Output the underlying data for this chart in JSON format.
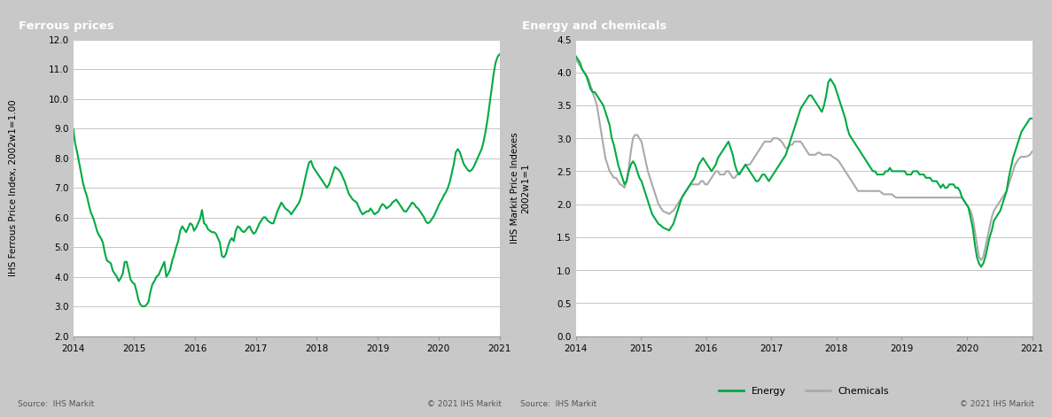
{
  "ferrous_title": "Ferrous prices",
  "energy_title": "Energy and chemicals",
  "ferrous_ylabel": "IHS Ferrous Price Index, 2002w1=1.00",
  "energy_ylabel": "IHS Markit Price Indexes\n2002w1=1",
  "ferrous_ylim": [
    2.0,
    12.0
  ],
  "ferrous_yticks": [
    2.0,
    3.0,
    4.0,
    5.0,
    6.0,
    7.0,
    8.0,
    9.0,
    10.0,
    11.0,
    12.0
  ],
  "energy_ylim": [
    0.0,
    4.5
  ],
  "energy_yticks": [
    0.0,
    0.5,
    1.0,
    1.5,
    2.0,
    2.5,
    3.0,
    3.5,
    4.0,
    4.5
  ],
  "xlim_start": 2014.0,
  "xlim_end": 2021.0,
  "xticks": [
    2014,
    2015,
    2016,
    2017,
    2018,
    2019,
    2020,
    2021
  ],
  "ferrous_color": "#00aa44",
  "energy_color": "#00aa44",
  "chemicals_color": "#aaaaaa",
  "title_bg_color": "#888888",
  "title_text_color": "#ffffff",
  "outer_bg_color": "#c8c8c8",
  "panel_bg_color": "#f0f0f0",
  "source_text": "Source:  IHS Markit",
  "copyright_text": "© 2021 IHS Markit",
  "plot_bg_color": "#ffffff",
  "grid_color": "#bbbbbb",
  "line_width": 1.5,
  "legend_energy": "Energy",
  "legend_chemicals": "Chemicals",
  "ferrous_data": [
    9.0,
    8.5,
    8.2,
    7.85,
    7.5,
    7.15,
    6.9,
    6.7,
    6.4,
    6.15,
    6.0,
    5.8,
    5.55,
    5.4,
    5.3,
    5.15,
    4.8,
    4.55,
    4.5,
    4.45,
    4.2,
    4.1,
    4.0,
    3.85,
    3.95,
    4.1,
    4.5,
    4.5,
    4.2,
    3.9,
    3.8,
    3.75,
    3.5,
    3.2,
    3.05,
    3.0,
    3.0,
    3.05,
    3.15,
    3.5,
    3.75,
    3.85,
    4.0,
    4.05,
    4.2,
    4.35,
    4.5,
    4.0,
    4.1,
    4.25,
    4.55,
    4.75,
    5.0,
    5.2,
    5.55,
    5.7,
    5.6,
    5.5,
    5.65,
    5.8,
    5.75,
    5.55,
    5.65,
    5.8,
    5.95,
    6.25,
    5.8,
    5.75,
    5.6,
    5.55,
    5.5,
    5.5,
    5.45,
    5.3,
    5.15,
    4.7,
    4.65,
    4.75,
    5.0,
    5.2,
    5.3,
    5.2,
    5.55,
    5.7,
    5.65,
    5.55,
    5.5,
    5.55,
    5.65,
    5.7,
    5.55,
    5.45,
    5.5,
    5.65,
    5.8,
    5.9,
    6.0,
    6.0,
    5.9,
    5.85,
    5.8,
    5.8,
    6.0,
    6.2,
    6.35,
    6.5,
    6.4,
    6.3,
    6.25,
    6.2,
    6.1,
    6.2,
    6.3,
    6.4,
    6.5,
    6.7,
    7.0,
    7.3,
    7.6,
    7.85,
    7.9,
    7.7,
    7.6,
    7.5,
    7.4,
    7.3,
    7.2,
    7.1,
    7.0,
    7.1,
    7.3,
    7.5,
    7.7,
    7.65,
    7.6,
    7.5,
    7.35,
    7.2,
    7.0,
    6.8,
    6.7,
    6.6,
    6.55,
    6.5,
    6.35,
    6.2,
    6.1,
    6.15,
    6.2,
    6.2,
    6.3,
    6.2,
    6.1,
    6.15,
    6.2,
    6.35,
    6.45,
    6.4,
    6.3,
    6.35,
    6.4,
    6.5,
    6.55,
    6.6,
    6.5,
    6.4,
    6.3,
    6.2,
    6.2,
    6.3,
    6.4,
    6.5,
    6.45,
    6.35,
    6.3,
    6.2,
    6.1,
    6.0,
    5.85,
    5.8,
    5.85,
    5.95,
    6.05,
    6.2,
    6.35,
    6.5,
    6.6,
    6.75,
    6.85,
    7.0,
    7.2,
    7.5,
    7.8,
    8.2,
    8.3,
    8.2,
    8.0,
    7.8,
    7.7,
    7.6,
    7.55,
    7.6,
    7.7,
    7.85,
    8.0,
    8.15,
    8.3,
    8.55,
    8.9,
    9.3,
    9.8,
    10.3,
    10.8,
    11.2,
    11.4,
    11.5
  ],
  "energy_data": [
    4.25,
    4.2,
    4.15,
    4.05,
    4.0,
    3.95,
    3.85,
    3.75,
    3.7,
    3.7,
    3.65,
    3.6,
    3.55,
    3.5,
    3.4,
    3.3,
    3.2,
    3.0,
    2.9,
    2.75,
    2.6,
    2.5,
    2.4,
    2.3,
    2.35,
    2.5,
    2.6,
    2.65,
    2.6,
    2.5,
    2.4,
    2.35,
    2.25,
    2.15,
    2.05,
    1.95,
    1.85,
    1.8,
    1.75,
    1.7,
    1.68,
    1.65,
    1.63,
    1.62,
    1.6,
    1.65,
    1.7,
    1.8,
    1.9,
    2.0,
    2.1,
    2.15,
    2.2,
    2.25,
    2.3,
    2.35,
    2.4,
    2.5,
    2.6,
    2.65,
    2.7,
    2.65,
    2.6,
    2.55,
    2.5,
    2.55,
    2.6,
    2.7,
    2.75,
    2.8,
    2.85,
    2.9,
    2.95,
    2.85,
    2.75,
    2.6,
    2.5,
    2.45,
    2.5,
    2.55,
    2.6,
    2.55,
    2.5,
    2.45,
    2.4,
    2.35,
    2.35,
    2.4,
    2.45,
    2.45,
    2.4,
    2.35,
    2.4,
    2.45,
    2.5,
    2.55,
    2.6,
    2.65,
    2.7,
    2.75,
    2.85,
    2.95,
    3.05,
    3.15,
    3.25,
    3.35,
    3.45,
    3.5,
    3.55,
    3.6,
    3.65,
    3.65,
    3.6,
    3.55,
    3.5,
    3.45,
    3.4,
    3.5,
    3.65,
    3.85,
    3.9,
    3.85,
    3.8,
    3.7,
    3.6,
    3.5,
    3.4,
    3.3,
    3.15,
    3.05,
    3.0,
    2.95,
    2.9,
    2.85,
    2.8,
    2.75,
    2.7,
    2.65,
    2.6,
    2.55,
    2.5,
    2.5,
    2.45,
    2.45,
    2.45,
    2.45,
    2.5,
    2.5,
    2.55,
    2.5,
    2.5,
    2.5,
    2.5,
    2.5,
    2.5,
    2.5,
    2.45,
    2.45,
    2.45,
    2.5,
    2.5,
    2.5,
    2.45,
    2.45,
    2.45,
    2.4,
    2.4,
    2.4,
    2.35,
    2.35,
    2.35,
    2.3,
    2.25,
    2.3,
    2.25,
    2.25,
    2.3,
    2.3,
    2.3,
    2.25,
    2.25,
    2.2,
    2.1,
    2.05,
    2.0,
    1.95,
    1.8,
    1.65,
    1.4,
    1.2,
    1.1,
    1.05,
    1.1,
    1.2,
    1.35,
    1.5,
    1.6,
    1.75,
    1.8,
    1.85,
    1.9,
    2.0,
    2.1,
    2.2,
    2.4,
    2.55,
    2.7,
    2.8,
    2.9,
    3.0,
    3.1,
    3.15,
    3.2,
    3.25,
    3.3,
    3.3
  ],
  "chemicals_data": [
    4.2,
    4.15,
    4.1,
    4.05,
    4.0,
    3.95,
    3.9,
    3.8,
    3.7,
    3.6,
    3.5,
    3.3,
    3.1,
    2.9,
    2.7,
    2.6,
    2.5,
    2.45,
    2.4,
    2.4,
    2.35,
    2.3,
    2.28,
    2.25,
    2.35,
    2.55,
    2.8,
    3.0,
    3.05,
    3.05,
    3.0,
    2.95,
    2.8,
    2.65,
    2.5,
    2.4,
    2.3,
    2.2,
    2.1,
    2.0,
    1.95,
    1.9,
    1.88,
    1.87,
    1.85,
    1.88,
    1.9,
    1.95,
    2.0,
    2.05,
    2.1,
    2.15,
    2.2,
    2.25,
    2.3,
    2.3,
    2.3,
    2.3,
    2.3,
    2.35,
    2.35,
    2.3,
    2.3,
    2.35,
    2.4,
    2.45,
    2.5,
    2.5,
    2.45,
    2.45,
    2.45,
    2.5,
    2.5,
    2.45,
    2.4,
    2.4,
    2.45,
    2.45,
    2.5,
    2.55,
    2.6,
    2.6,
    2.6,
    2.65,
    2.7,
    2.75,
    2.8,
    2.85,
    2.9,
    2.95,
    2.95,
    2.95,
    2.95,
    3.0,
    3.0,
    3.0,
    2.98,
    2.95,
    2.9,
    2.85,
    2.85,
    2.9,
    2.9,
    2.95,
    2.95,
    2.95,
    2.95,
    2.9,
    2.85,
    2.8,
    2.75,
    2.75,
    2.75,
    2.75,
    2.78,
    2.78,
    2.75,
    2.75,
    2.75,
    2.75,
    2.75,
    2.72,
    2.7,
    2.68,
    2.65,
    2.6,
    2.55,
    2.5,
    2.45,
    2.4,
    2.35,
    2.3,
    2.25,
    2.2,
    2.2,
    2.2,
    2.2,
    2.2,
    2.2,
    2.2,
    2.2,
    2.2,
    2.2,
    2.2,
    2.18,
    2.15,
    2.15,
    2.15,
    2.15,
    2.15,
    2.12,
    2.1,
    2.1,
    2.1,
    2.1,
    2.1,
    2.1,
    2.1,
    2.1,
    2.1,
    2.1,
    2.1,
    2.1,
    2.1,
    2.1,
    2.1,
    2.1,
    2.1,
    2.1,
    2.1,
    2.1,
    2.1,
    2.1,
    2.1,
    2.1,
    2.1,
    2.1,
    2.1,
    2.1,
    2.1,
    2.1,
    2.1,
    2.1,
    2.05,
    2.0,
    1.95,
    1.9,
    1.8,
    1.6,
    1.4,
    1.2,
    1.15,
    1.2,
    1.35,
    1.5,
    1.65,
    1.8,
    1.9,
    1.95,
    2.0,
    2.05,
    2.1,
    2.15,
    2.2,
    2.3,
    2.4,
    2.5,
    2.6,
    2.65,
    2.7,
    2.72,
    2.72,
    2.72,
    2.73,
    2.75,
    2.8
  ]
}
